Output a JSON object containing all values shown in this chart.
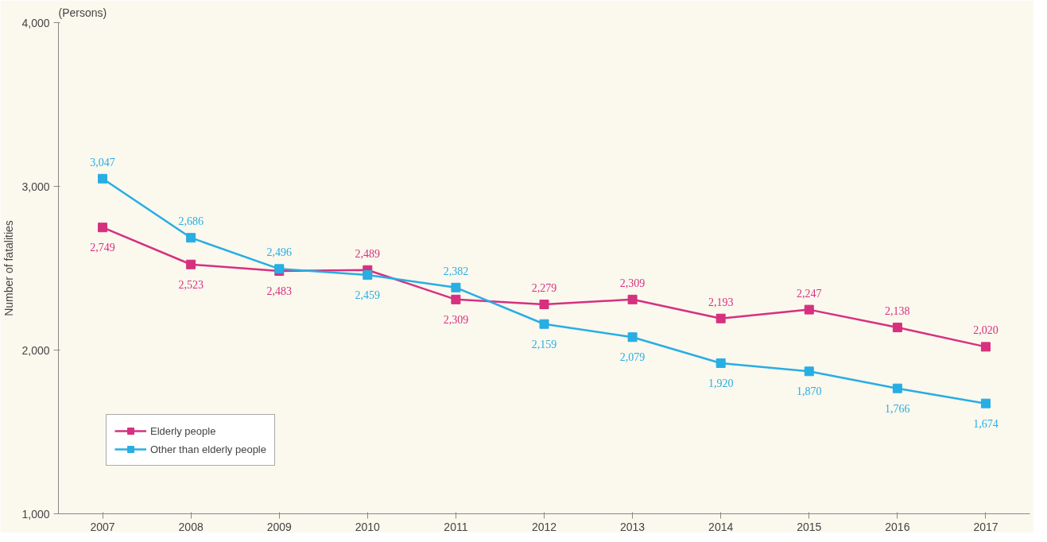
{
  "chart_data": {
    "type": "line",
    "categories": [
      "2007",
      "2008",
      "2009",
      "2010",
      "2011",
      "2012",
      "2013",
      "2014",
      "2015",
      "2016",
      "2017"
    ],
    "series": [
      {
        "name": "Elderly people",
        "color": "#d6307f",
        "values": [
          2749,
          2523,
          2483,
          2489,
          2309,
          2279,
          2309,
          2193,
          2247,
          2138,
          2020
        ],
        "value_labels": [
          "2,749",
          "2,523",
          "2,483",
          "2,489",
          "2,309",
          "2,279",
          "2,309",
          "2,193",
          "2,247",
          "2,138",
          "2,020"
        ]
      },
      {
        "name": "Other than elderly people",
        "color": "#27aee3",
        "values": [
          3047,
          2686,
          2496,
          2459,
          2382,
          2159,
          2079,
          1920,
          1870,
          1766,
          1674
        ],
        "value_labels": [
          "3,047",
          "2,686",
          "2,496",
          "2,459",
          "2,382",
          "2,159",
          "2,079",
          "1,920",
          "1,870",
          "1,766",
          "1,674"
        ]
      }
    ],
    "ylabel": "Number of fatalities",
    "annotations": [
      "(Persons)"
    ],
    "ylim": [
      1000,
      4000
    ],
    "yticks": [
      {
        "value": 1000,
        "label": "1,000"
      },
      {
        "value": 2000,
        "label": "2,000"
      },
      {
        "value": 3000,
        "label": "3,000"
      },
      {
        "value": 4000,
        "label": "4,000"
      }
    ],
    "grid": false,
    "legend": "bottom left",
    "marker": "square",
    "line_style": "solid"
  }
}
